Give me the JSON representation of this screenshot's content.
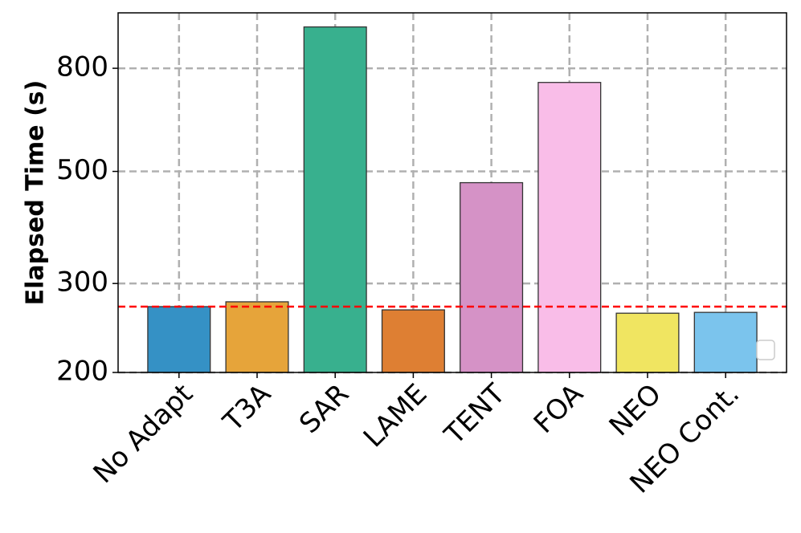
{
  "chart_data": {
    "type": "bar",
    "ylabel": "Elapsed Time (s)",
    "categories": [
      "No Adapt",
      "T3A",
      "SAR",
      "LAME",
      "TENT",
      "FOA",
      "NEO",
      "NEO Cont."
    ],
    "values": [
      270,
      276,
      966,
      266,
      475,
      750,
      262,
      263
    ],
    "colors": [
      "#3591c5",
      "#e6a43a",
      "#38b08e",
      "#de7f33",
      "#d592c6",
      "#f9bde8",
      "#f0e561",
      "#7bc4ed"
    ],
    "ylim": [
      200,
      1030
    ],
    "yticks": [
      200,
      300,
      500,
      800
    ],
    "log_scale": true,
    "grid": true,
    "hline": {
      "value": 270,
      "color": "#ff0000"
    }
  }
}
